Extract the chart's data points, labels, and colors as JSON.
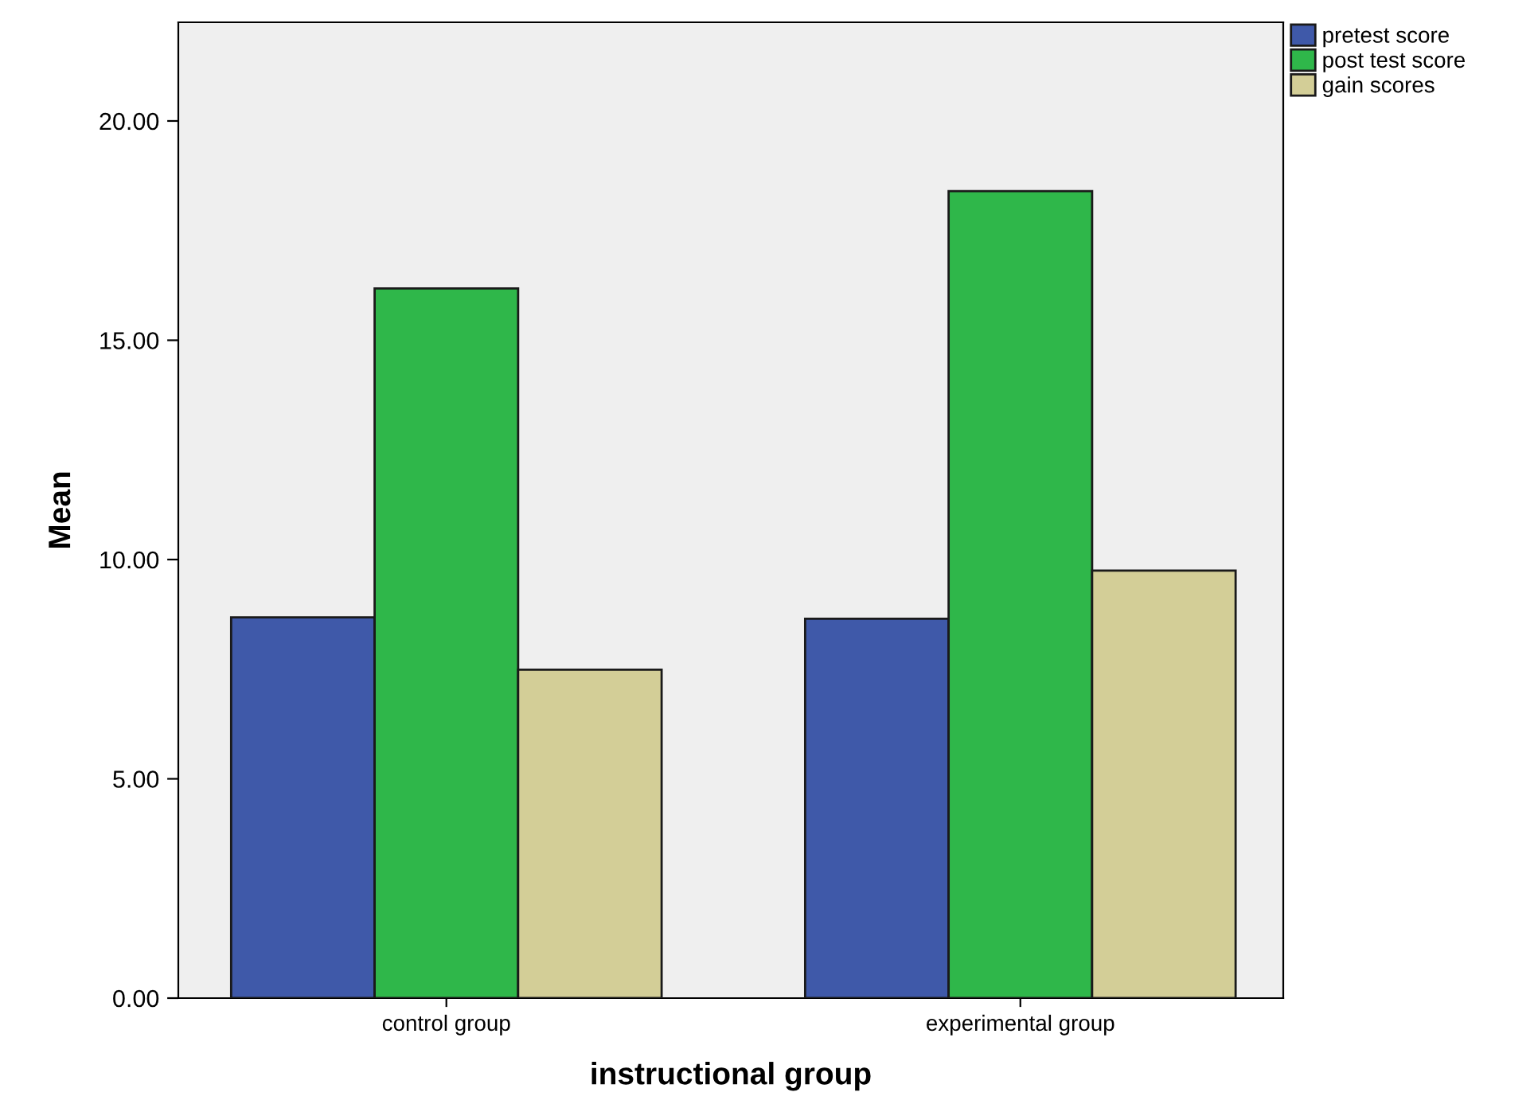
{
  "chart_data": {
    "type": "bar",
    "xlabel": "instructional group",
    "ylabel": "Mean",
    "categories": [
      "control group",
      "experimental group"
    ],
    "series": [
      {
        "name": "pretest score",
        "color": "#3f59a9",
        "values": [
          8.68,
          8.65
        ]
      },
      {
        "name": "post test score",
        "color": "#2fb74a",
        "values": [
          16.18,
          18.4
        ]
      },
      {
        "name": "gain scores",
        "color": "#d3ce97",
        "values": [
          7.49,
          9.75
        ]
      }
    ],
    "ylim": [
      0,
      22.25
    ],
    "yticks": [
      {
        "value": 0,
        "label": "0.00"
      },
      {
        "value": 5,
        "label": "5.00"
      },
      {
        "value": 10,
        "label": "10.00"
      },
      {
        "value": 15,
        "label": "15.00"
      },
      {
        "value": 20,
        "label": "20.00"
      }
    ],
    "grid": false,
    "legend": "top right"
  }
}
